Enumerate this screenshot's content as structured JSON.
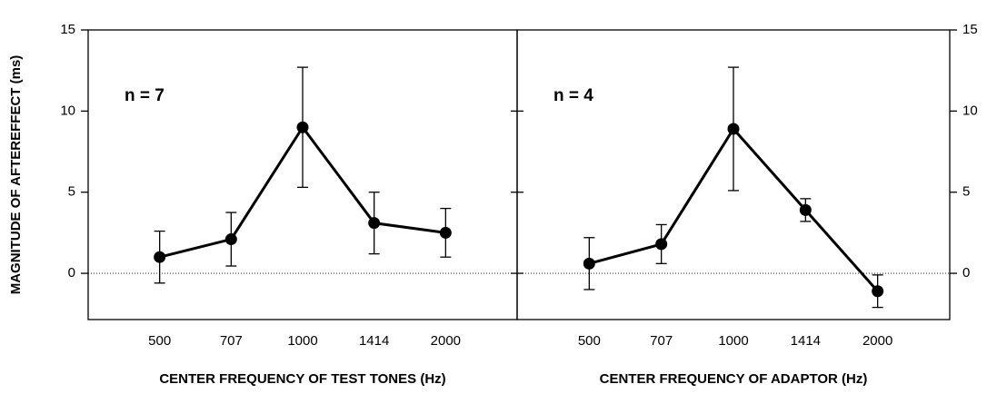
{
  "chart_data": [
    {
      "type": "line",
      "ylabel": "MAGNITUDE OF AFTEREFFECT (ms)",
      "xlabel": "CENTER FREQUENCY OF TEST TONES (Hz)",
      "annotation": "n = 7",
      "categories": [
        "500",
        "707",
        "1000",
        "1414",
        "2000"
      ],
      "series": [
        {
          "color": "#000000",
          "values": [
            1.0,
            2.1,
            9.0,
            3.1,
            2.5
          ],
          "errors": [
            1.6,
            1.65,
            3.7,
            1.9,
            1.5
          ]
        }
      ],
      "ylim": [
        -2.85,
        15
      ],
      "yticks": [
        0,
        5,
        10,
        15
      ],
      "y_axis_side": "left",
      "zero_line": "dotted"
    },
    {
      "type": "line",
      "xlabel": "CENTER FREQUENCY OF ADAPTOR (Hz)",
      "annotation": "n = 4",
      "categories": [
        "500",
        "707",
        "1000",
        "1414",
        "2000"
      ],
      "series": [
        {
          "color": "#000000",
          "values": [
            0.6,
            1.8,
            8.9,
            3.9,
            -1.1
          ],
          "errors": [
            1.6,
            1.2,
            3.8,
            0.7,
            1.0
          ]
        }
      ],
      "ylim": [
        -2.85,
        15
      ],
      "yticks": [
        0,
        5,
        10,
        15
      ],
      "y_axis_side": "right",
      "zero_line": "dotted"
    }
  ]
}
